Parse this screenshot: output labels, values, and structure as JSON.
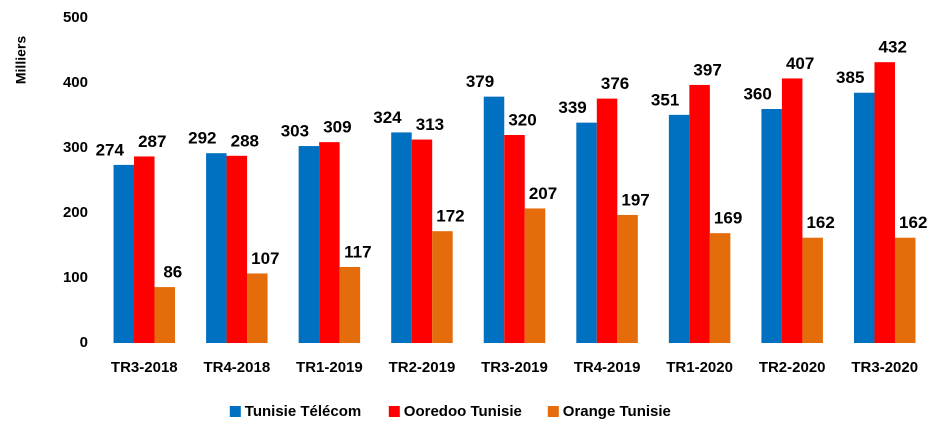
{
  "chart_data": {
    "type": "bar",
    "y_label": "Milliers",
    "categories": [
      "TR3-2018",
      "TR4-2018",
      "TR1-2019",
      "TR2-2019",
      "TR3-2019",
      "TR4-2019",
      "TR1-2020",
      "TR2-2020",
      "TR3-2020"
    ],
    "series": [
      {
        "name": "Tunisie Télécom",
        "color": "#0070c0",
        "values": [
          274,
          292,
          303,
          324,
          379,
          339,
          351,
          360,
          385
        ]
      },
      {
        "name": "Ooredoo Tunisie",
        "color": "#ff0000",
        "values": [
          287,
          288,
          309,
          313,
          320,
          376,
          397,
          407,
          432
        ]
      },
      {
        "name": "Orange Tunisie",
        "color": "#e46c0a",
        "values": [
          86,
          107,
          117,
          172,
          207,
          197,
          169,
          162,
          162
        ]
      }
    ],
    "ylim": [
      0,
      500
    ],
    "yticks": [
      0,
      100,
      200,
      300,
      400,
      500
    ],
    "grid": false,
    "legend": "bottom"
  }
}
